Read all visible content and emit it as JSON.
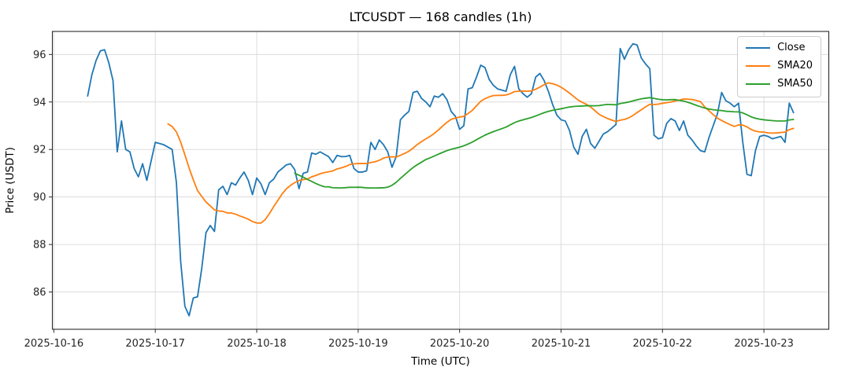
{
  "chart_data": {
    "type": "line",
    "title": "LTCUSDT — 168 candles (1h)",
    "xlabel": "Time (UTC)",
    "ylabel": "Price (USDT)",
    "candle_count": 168,
    "interval": "1h",
    "x_start_utc": "2025-10-16 08:00",
    "x_tick_labels": [
      "2025-10-16",
      "2025-10-17",
      "2025-10-18",
      "2025-10-19",
      "2025-10-20",
      "2025-10-21",
      "2025-10-22",
      "2025-10-23"
    ],
    "y_ticks": [
      86,
      88,
      90,
      92,
      94,
      96
    ],
    "ylim": [
      84.43,
      96.97
    ],
    "grid": true,
    "background": "#ffffff",
    "grid_color": "#dcdcdc",
    "spine_color": "#2a2a2a",
    "legend": {
      "position": "upper right",
      "entries": [
        "Close",
        "SMA20",
        "SMA50"
      ]
    },
    "series": [
      {
        "name": "Close",
        "color": "#1f77b4",
        "values": [
          94.25,
          95.15,
          95.75,
          96.15,
          96.2,
          95.65,
          94.9,
          91.9,
          93.2,
          92.0,
          91.9,
          91.2,
          90.85,
          91.4,
          90.7,
          91.5,
          92.3,
          92.25,
          92.2,
          92.1,
          92.0,
          90.6,
          87.3,
          85.4,
          85.0,
          85.75,
          85.8,
          87.0,
          88.5,
          88.8,
          88.55,
          90.3,
          90.45,
          90.1,
          90.6,
          90.5,
          90.8,
          91.05,
          90.7,
          90.1,
          90.8,
          90.55,
          90.1,
          90.6,
          90.75,
          91.05,
          91.2,
          91.35,
          91.4,
          91.15,
          90.35,
          91.0,
          91.05,
          91.85,
          91.8,
          91.9,
          91.8,
          91.7,
          91.45,
          91.75,
          91.7,
          91.7,
          91.75,
          91.2,
          91.05,
          91.05,
          91.1,
          92.3,
          92.0,
          92.4,
          92.2,
          91.9,
          91.25,
          91.7,
          93.25,
          93.45,
          93.6,
          94.4,
          94.45,
          94.15,
          94.0,
          93.8,
          94.25,
          94.2,
          94.35,
          94.1,
          93.6,
          93.4,
          92.85,
          93.0,
          94.55,
          94.6,
          95.05,
          95.55,
          95.45,
          94.95,
          94.7,
          94.55,
          94.5,
          94.45,
          95.15,
          95.5,
          94.55,
          94.35,
          94.2,
          94.35,
          95.05,
          95.2,
          94.9,
          94.45,
          93.9,
          93.45,
          93.25,
          93.2,
          92.8,
          92.1,
          91.8,
          92.55,
          92.85,
          92.25,
          92.05,
          92.35,
          92.65,
          92.75,
          92.9,
          93.05,
          96.25,
          95.8,
          96.2,
          96.45,
          96.4,
          95.85,
          95.6,
          95.4,
          92.6,
          92.45,
          92.5,
          93.1,
          93.3,
          93.2,
          92.8,
          93.2,
          92.6,
          92.4,
          92.15,
          91.95,
          91.9,
          92.5,
          93.0,
          93.5,
          94.4,
          94.05,
          93.95,
          93.8,
          93.95,
          92.3,
          90.95,
          90.9,
          91.95,
          92.55,
          92.6,
          92.55,
          92.45,
          92.5,
          92.55,
          92.3,
          93.95,
          93.55
        ]
      },
      {
        "name": "SMA20",
        "color": "#ff7f0e",
        "derived": "sma_of_close",
        "window": 20
      },
      {
        "name": "SMA50",
        "color": "#2ca02c",
        "derived": "sma_of_close",
        "window": 50
      }
    ]
  }
}
